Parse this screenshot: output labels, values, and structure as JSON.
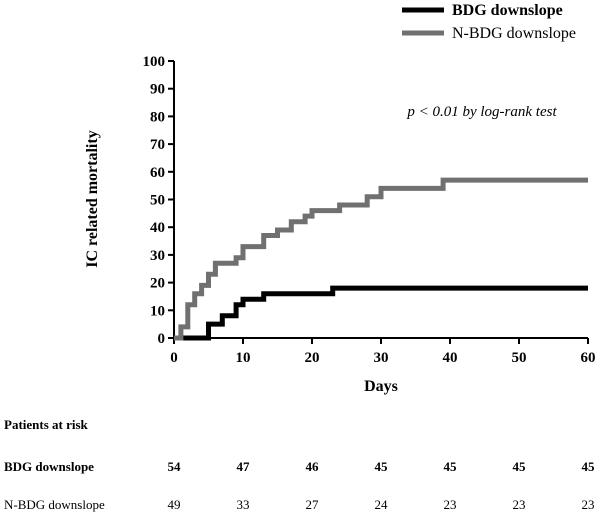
{
  "chart_data": {
    "type": "line",
    "ylabel": "IC related mortality",
    "xlabel": "Days",
    "xlim": [
      0,
      60
    ],
    "ylim": [
      0,
      100
    ],
    "x_ticks": [
      "0",
      "10",
      "20",
      "30",
      "40",
      "50",
      "60"
    ],
    "y_ticks": [
      "0",
      "10",
      "20",
      "30",
      "40",
      "50",
      "60",
      "70",
      "80",
      "90",
      "100"
    ],
    "annotation": "p < 0.01 by log-rank test",
    "grid": false,
    "legend_position": "top-right",
    "series": [
      {
        "name": "BDG downslope",
        "color": "#000000",
        "steps": [
          [
            0,
            0
          ],
          [
            5,
            0
          ],
          [
            5,
            5
          ],
          [
            7,
            5
          ],
          [
            7,
            8
          ],
          [
            9,
            8
          ],
          [
            9,
            12
          ],
          [
            10,
            12
          ],
          [
            10,
            14
          ],
          [
            13,
            14
          ],
          [
            13,
            16
          ],
          [
            23,
            16
          ],
          [
            23,
            18
          ],
          [
            60,
            18
          ]
        ]
      },
      {
        "name": "N-BDG downslope",
        "color": "#707070",
        "steps": [
          [
            0,
            0
          ],
          [
            1,
            0
          ],
          [
            1,
            4
          ],
          [
            2,
            4
          ],
          [
            2,
            12
          ],
          [
            3,
            12
          ],
          [
            3,
            16
          ],
          [
            4,
            16
          ],
          [
            4,
            19
          ],
          [
            5,
            19
          ],
          [
            5,
            23
          ],
          [
            6,
            23
          ],
          [
            6,
            27
          ],
          [
            9,
            27
          ],
          [
            9,
            29
          ],
          [
            10,
            29
          ],
          [
            10,
            33
          ],
          [
            13,
            33
          ],
          [
            13,
            37
          ],
          [
            15,
            37
          ],
          [
            15,
            39
          ],
          [
            17,
            39
          ],
          [
            17,
            42
          ],
          [
            19,
            42
          ],
          [
            19,
            44
          ],
          [
            20,
            44
          ],
          [
            20,
            46
          ],
          [
            24,
            46
          ],
          [
            24,
            48
          ],
          [
            28,
            48
          ],
          [
            28,
            51
          ],
          [
            30,
            51
          ],
          [
            30,
            54
          ],
          [
            39,
            54
          ],
          [
            39,
            57
          ],
          [
            60,
            57
          ]
        ]
      }
    ]
  },
  "risk_table": {
    "title": "Patients at risk",
    "rows": [
      {
        "label": "BDG downslope",
        "values": [
          "54",
          "47",
          "46",
          "45",
          "45",
          "45",
          "45"
        ]
      },
      {
        "label": "N-BDG downslope",
        "values": [
          "49",
          "33",
          "27",
          "24",
          "23",
          "23",
          "23"
        ]
      }
    ]
  }
}
